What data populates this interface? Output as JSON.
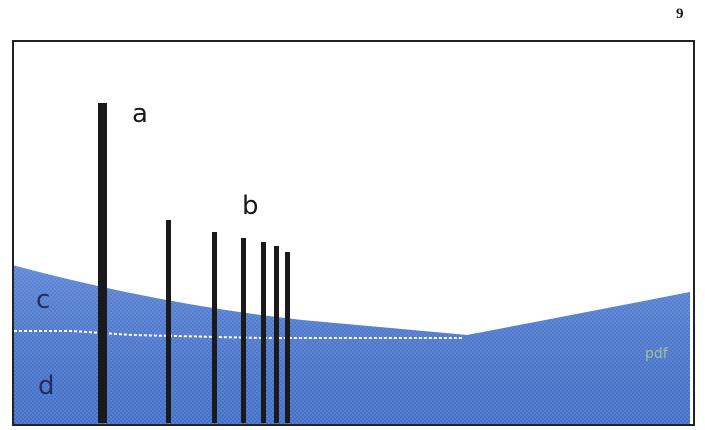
{
  "page": {
    "number": "9"
  },
  "figure": {
    "labels": {
      "a": "a",
      "b": "b",
      "c": "c",
      "d": "d",
      "ghost": "pdf"
    },
    "colors": {
      "water_light": "#6f95d8",
      "water_deep": "#3f6cc4",
      "stake": "#1a1a1a",
      "border": "#222222",
      "waterline": "#ffffff"
    }
  }
}
